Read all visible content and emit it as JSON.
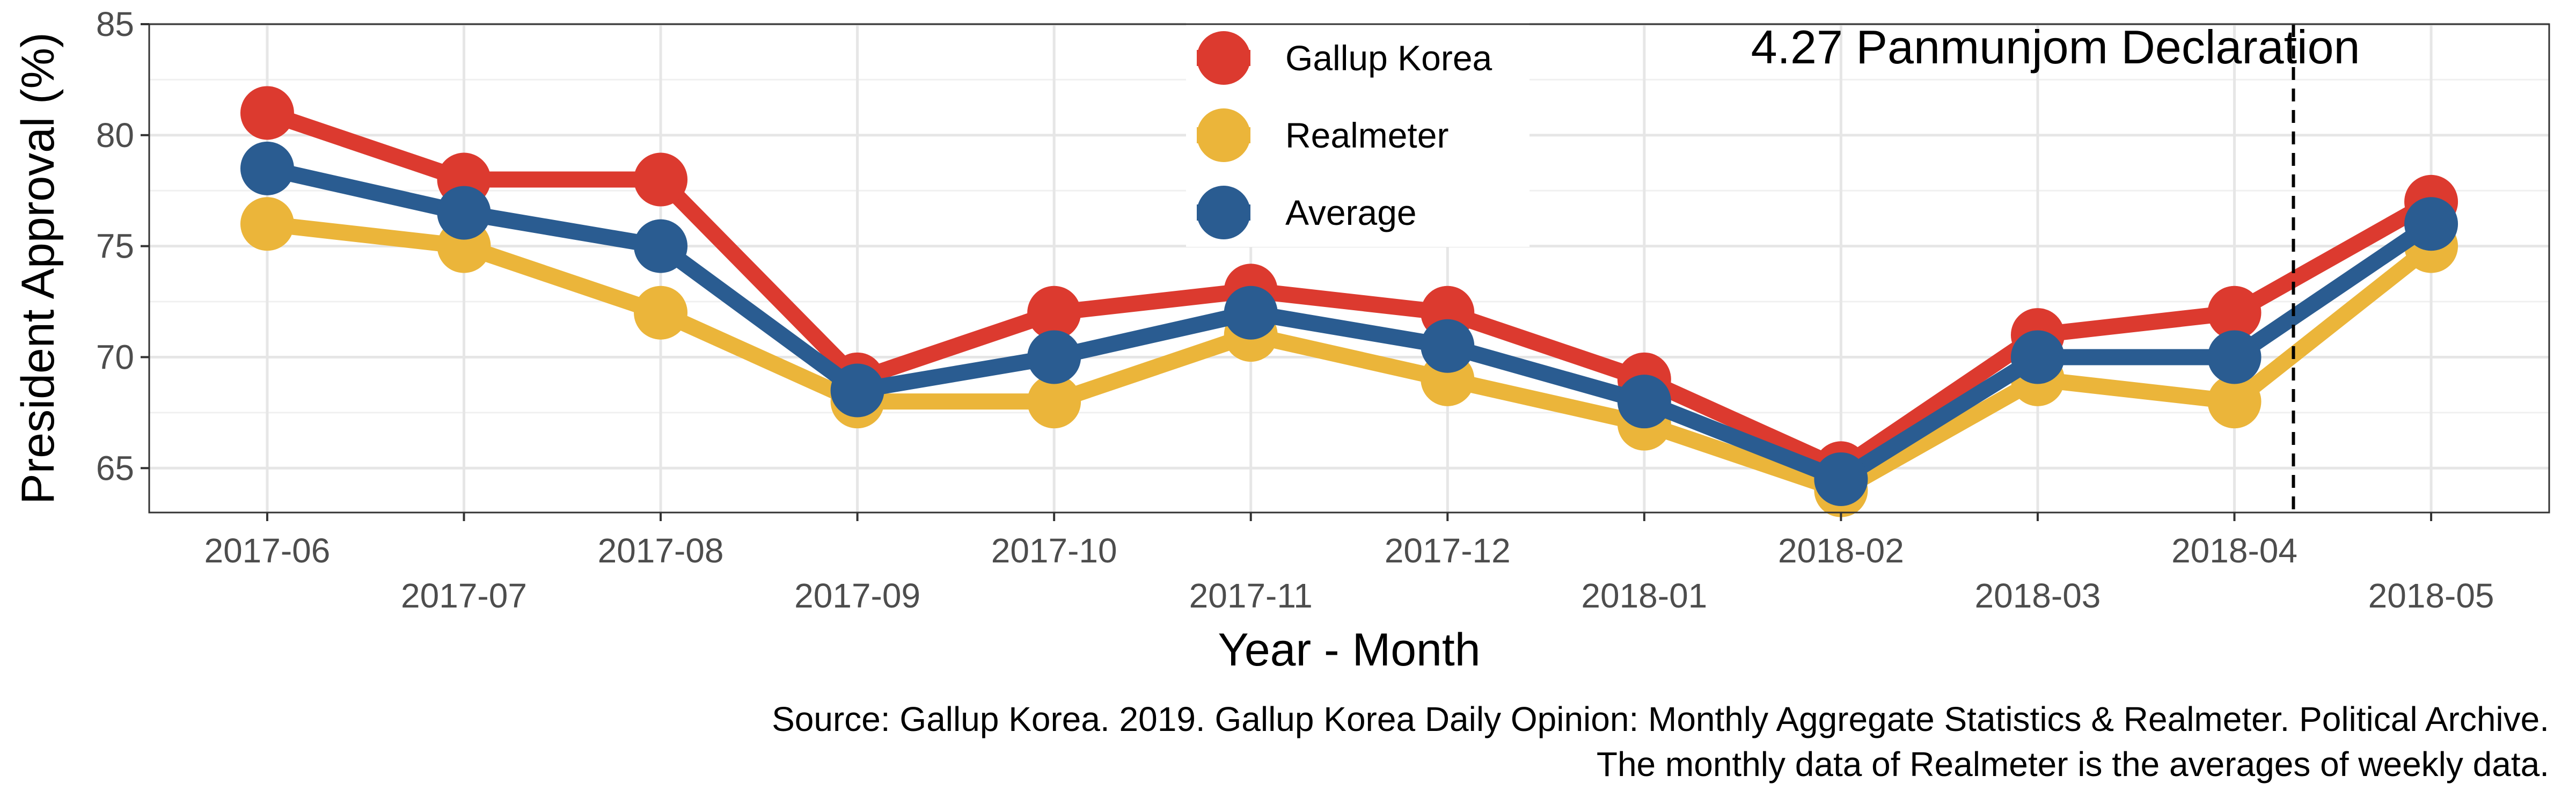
{
  "chart_data": {
    "type": "line",
    "title": "",
    "xlabel": "Year - Month",
    "ylabel": "President Approval (%)",
    "categories": [
      "2017-06",
      "2017-07",
      "2017-08",
      "2017-09",
      "2017-10",
      "2017-11",
      "2017-12",
      "2018-01",
      "2018-02",
      "2018-03",
      "2018-04",
      "2018-05"
    ],
    "ylim": [
      63,
      85
    ],
    "yticks": [
      65,
      70,
      75,
      80,
      85
    ],
    "grid": true,
    "legend": "top-center",
    "series": [
      {
        "name": "Gallup Korea",
        "color": "#dc3a2f",
        "values": [
          81,
          78,
          78,
          69,
          72,
          73,
          72,
          69,
          65,
          71,
          72,
          77
        ]
      },
      {
        "name": "Realmeter",
        "color": "#ebb53a",
        "values": [
          76,
          75,
          72,
          68,
          68,
          71,
          69,
          67,
          64,
          69,
          68,
          75
        ]
      },
      {
        "name": "Average",
        "color": "#2a5c91",
        "values": [
          78.5,
          76.5,
          75,
          68.5,
          70,
          72,
          70.5,
          68,
          64.5,
          70,
          70,
          76
        ]
      }
    ],
    "annotation": {
      "label": "4.27 Panmunjom Declaration",
      "x_between": [
        "2018-04",
        "2018-05"
      ],
      "x_fraction": 0.3,
      "style": "dashed"
    },
    "caption": [
      "Source: Gallup Korea. 2019. Gallup Korea Daily Opinion: Monthly Aggregate Statistics & Realmeter. Political Archive.",
      "The monthly data of Realmeter is the averages of weekly data."
    ]
  }
}
